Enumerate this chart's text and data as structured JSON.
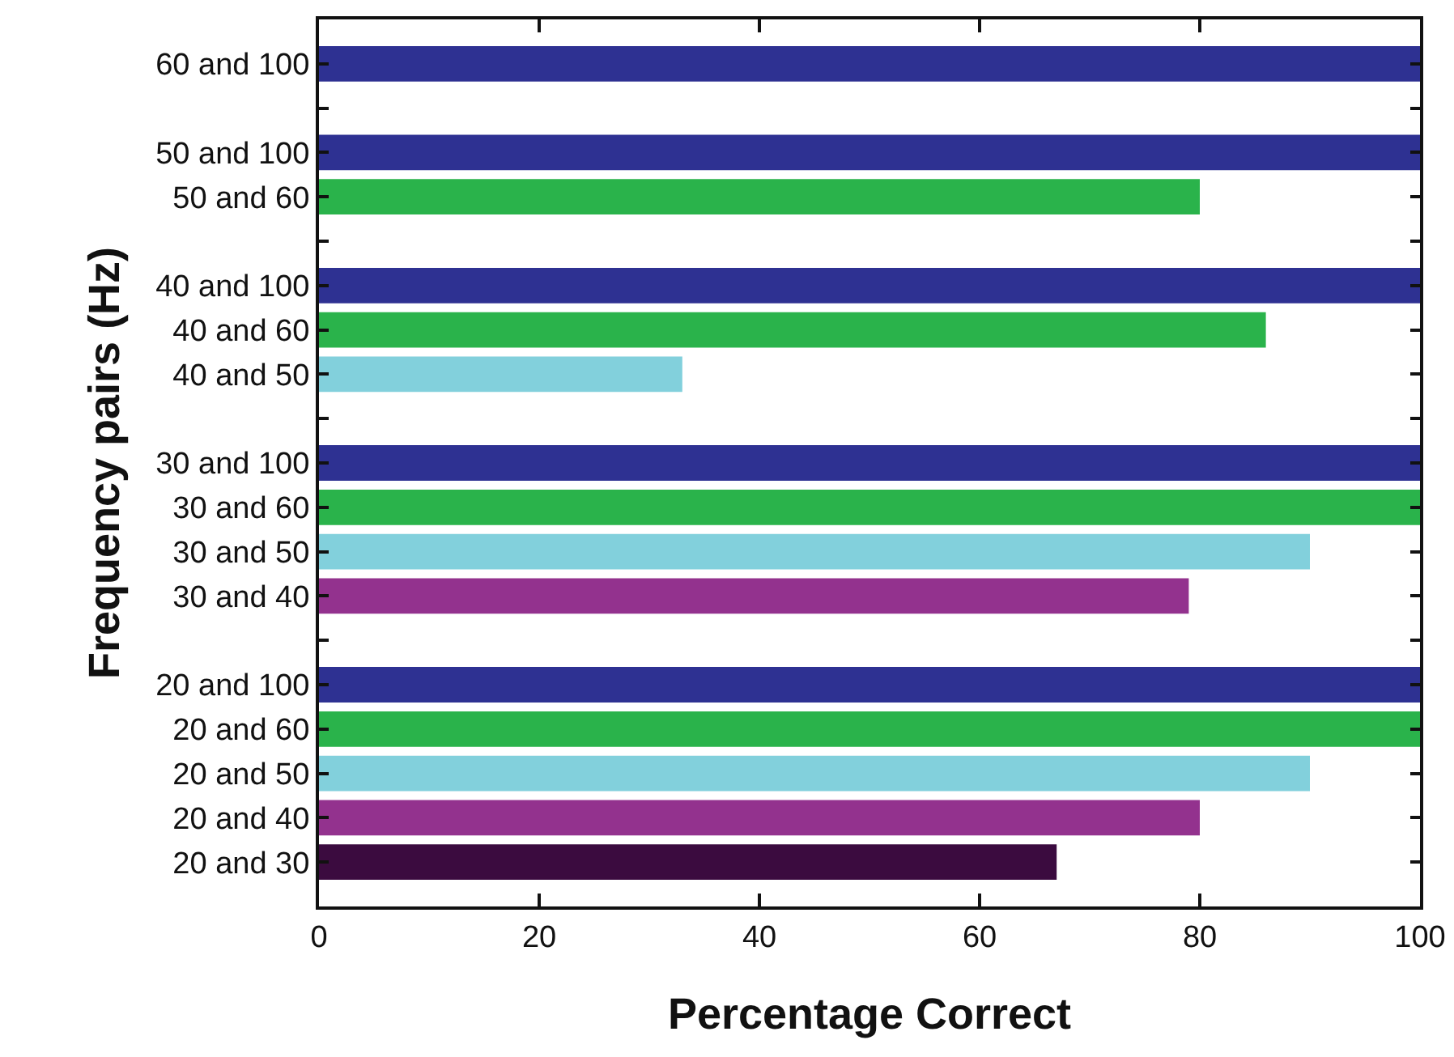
{
  "chart_data": {
    "type": "bar",
    "orientation": "horizontal",
    "xlabel": "Percentage Correct",
    "ylabel": "Frequency pairs (Hz)",
    "categories": [
      "60 and 100",
      null,
      "50 and 100",
      "50 and 60",
      null,
      "40 and 100",
      "40 and 60",
      "40 and 50",
      null,
      "30 and 100",
      "30 and 60",
      "30 and 50",
      "30 and 40",
      null,
      "20 and 100",
      "20 and 60",
      "20 and 50",
      "20 and 40",
      "20 and 30"
    ],
    "values": [
      100,
      null,
      100,
      80,
      null,
      100,
      86,
      33,
      null,
      100,
      100,
      90,
      79,
      null,
      100,
      100,
      90,
      80,
      67
    ],
    "colors": [
      "#2e3192",
      "#ffffff",
      "#2e3192",
      "#2ab34b",
      "#ffffff",
      "#2e3192",
      "#2ab34b",
      "#82d0dc",
      "#ffffff",
      "#2e3192",
      "#2ab34b",
      "#82d0dc",
      "#93328e",
      "#ffffff",
      "#2e3192",
      "#2ab34b",
      "#82d0dc",
      "#93328e",
      "#3b0b3f"
    ],
    "xlim": [
      0,
      100
    ],
    "xticks": [
      0,
      20,
      40,
      60,
      80,
      100
    ],
    "grid": false
  }
}
